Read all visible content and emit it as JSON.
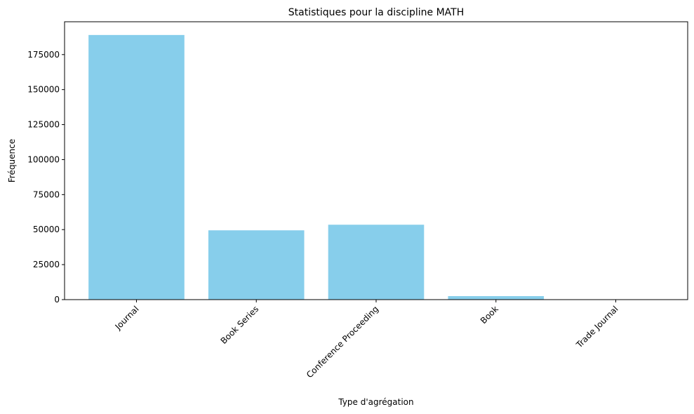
{
  "chart_data": {
    "type": "bar",
    "title": "Statistiques pour la discipline MATH",
    "xlabel": "Type d'agrégation",
    "ylabel": "Fréquence",
    "categories": [
      "Journal",
      "Book Series",
      "Conference Proceeding",
      "Book",
      "Trade Journal"
    ],
    "values": [
      189000,
      49500,
      53500,
      2500,
      200
    ],
    "ylim": [
      0,
      198450
    ],
    "yticks": [
      0,
      25000,
      50000,
      75000,
      100000,
      125000,
      150000,
      175000
    ],
    "ytick_labels": [
      "0",
      "25000",
      "50000",
      "75000",
      "100000",
      "125000",
      "150000",
      "175000"
    ],
    "bar_color": "#87CEEB",
    "grid": false,
    "legend": false
  }
}
